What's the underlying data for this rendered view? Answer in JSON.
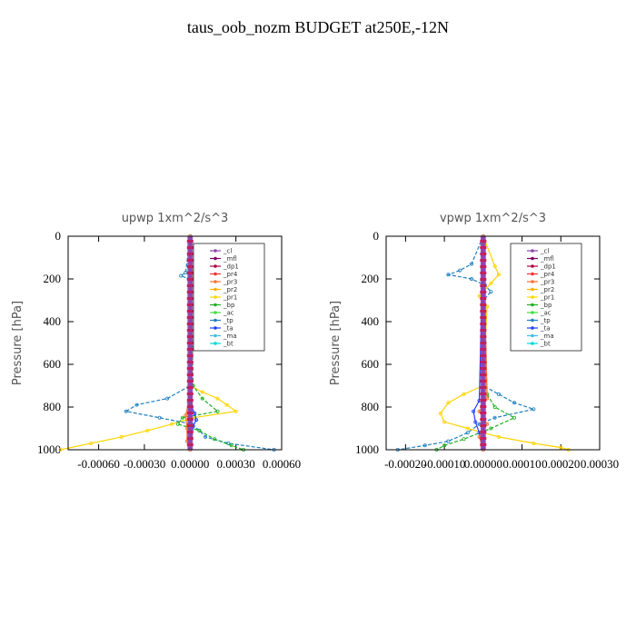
{
  "title": "taus_oob_nozm  BUDGET at250E,-12N",
  "legend_entries": [
    "_cl",
    "_mfl",
    "_dp1",
    "_pr4",
    "_pr3",
    "_pr2",
    "_pr1",
    "_bp",
    "_ac",
    "_tp",
    "_ta",
    "_ma",
    "_bt"
  ],
  "legend_colors": [
    "#8e44ad",
    "#800060",
    "#b00040",
    "#ff3030",
    "#ff7030",
    "#ffb000",
    "#ffd400",
    "#20b020",
    "#40e040",
    "#2080c0",
    "#2040ff",
    "#40c0e0",
    "#00d8d8"
  ],
  "chart_data": [
    {
      "type": "line",
      "title": "upwp   1xm^2/s^3",
      "xlabel": "",
      "ylabel": "Pressure [hPa]",
      "xlim": [
        -0.0008,
        0.0006
      ],
      "ylim": [
        1000,
        0
      ],
      "xticks": [
        -0.0006,
        -0.0003,
        0.0,
        0.0003,
        0.0006
      ],
      "xtick_labels": [
        "-0.00060",
        "-0.00030",
        "0.00000",
        "0.00030",
        "0.00060"
      ],
      "yticks": [
        0,
        200,
        400,
        600,
        800,
        1000
      ],
      "ytick_labels": [
        "0",
        "200",
        "400",
        "600",
        "800",
        "1000"
      ],
      "legend_placement": "top-right",
      "series": [
        {
          "name": "_pr1",
          "y": [
            0,
            160,
            180,
            200,
            700,
            730,
            760,
            790,
            820,
            850,
            880,
            910,
            940,
            970,
            1000
          ],
          "x": [
            0,
            1e-05,
            3e-05,
            1e-05,
            0,
            8e-05,
            0.00018,
            0.00024,
            0.0003,
            2e-05,
            -0.00012,
            -0.00028,
            -0.00045,
            -0.00065,
            -0.00085
          ]
        },
        {
          "name": "_tp",
          "y": [
            0,
            170,
            185,
            200,
            700,
            760,
            790,
            820,
            850,
            880,
            910,
            940,
            970,
            1000
          ],
          "x": [
            0,
            -3e-05,
            -6e-05,
            -1e-05,
            0,
            -0.00015,
            -0.00035,
            -0.00042,
            -0.0002,
            1e-05,
            6e-05,
            0.0001,
            0.00025,
            0.00055
          ]
        },
        {
          "name": "_bp",
          "y": [
            0,
            700,
            760,
            820,
            850,
            880,
            910,
            950,
            980,
            1000
          ],
          "x": [
            0,
            2e-05,
            8e-05,
            0.00018,
            -5e-05,
            -8e-05,
            6e-05,
            0.00016,
            0.00027,
            0.00035
          ]
        },
        {
          "name": "_ta",
          "y": [
            0,
            800,
            830,
            860,
            890,
            1000
          ],
          "x": [
            0,
            1e-05,
            3e-05,
            4e-05,
            2e-05,
            0
          ]
        },
        {
          "name": "_pr3",
          "y": [
            0,
            780,
            840,
            900,
            960,
            1000
          ],
          "x": [
            0,
            -1e-05,
            -3e-05,
            -2e-05,
            -2e-05,
            0
          ]
        },
        {
          "name": "_cl",
          "y": [
            0,
            1000
          ],
          "x": [
            0,
            0
          ]
        }
      ]
    },
    {
      "type": "line",
      "title": "vpwp   1xm^2/s^3",
      "xlabel": "",
      "ylabel": "Pressure [hPa]",
      "xlim": [
        -0.00025,
        0.0003
      ],
      "ylim": [
        1000,
        0
      ],
      "xticks": [
        -0.0002,
        -0.0001,
        0.0,
        0.0001,
        0.0002,
        0.0003
      ],
      "xtick_labels": [
        "-0.00020",
        "-0.00010",
        "0.00000",
        "0.00010",
        "0.00020",
        "0.00030"
      ],
      "yticks": [
        0,
        200,
        400,
        600,
        800,
        1000
      ],
      "ytick_labels": [
        "0",
        "200",
        "400",
        "600",
        "800",
        "1000"
      ],
      "legend_placement": "top-right",
      "series": [
        {
          "name": "_tp",
          "y": [
            0,
            130,
            160,
            180,
            200,
            230,
            260,
            300,
            700,
            740,
            780,
            810,
            850,
            880,
            920,
            960,
            980,
            1000
          ],
          "x": [
            0,
            -3e-05,
            -6e-05,
            -9e-05,
            -3e-05,
            5e-06,
            2e-05,
            0,
            0,
            4e-05,
            8e-05,
            0.00013,
            3e-05,
            -1e-05,
            -4e-05,
            -9e-05,
            -0.00015,
            -0.00022
          ]
        },
        {
          "name": "_pr1",
          "y": [
            0,
            140,
            180,
            220,
            280,
            330,
            700,
            740,
            780,
            830,
            870,
            900,
            940,
            970,
            990,
            1000
          ],
          "x": [
            0,
            3e-05,
            4e-05,
            2e-05,
            -1e-05,
            1e-05,
            0,
            -5e-05,
            -9e-05,
            -0.00011,
            -0.0001,
            -4e-05,
            4e-05,
            0.00013,
            0.0002,
            0.00022
          ]
        },
        {
          "name": "_bp",
          "y": [
            0,
            740,
            800,
            850,
            900,
            950,
            980,
            1000
          ],
          "x": [
            0,
            1e-05,
            3e-05,
            8e-05,
            2e-05,
            -5e-05,
            -0.0001,
            -0.00012
          ]
        },
        {
          "name": "_ta",
          "y": [
            0,
            770,
            820,
            870,
            920,
            1000
          ],
          "x": [
            0,
            -1e-05,
            -2.5e-05,
            -2e-05,
            -1e-05,
            0
          ]
        },
        {
          "name": "_pr3",
          "y": [
            0,
            760,
            820,
            880,
            940,
            1000
          ],
          "x": [
            0,
            1e-05,
            -1e-05,
            1e-05,
            -1e-05,
            0
          ]
        },
        {
          "name": "_cl",
          "y": [
            0,
            1000
          ],
          "x": [
            0,
            0
          ]
        }
      ]
    }
  ]
}
